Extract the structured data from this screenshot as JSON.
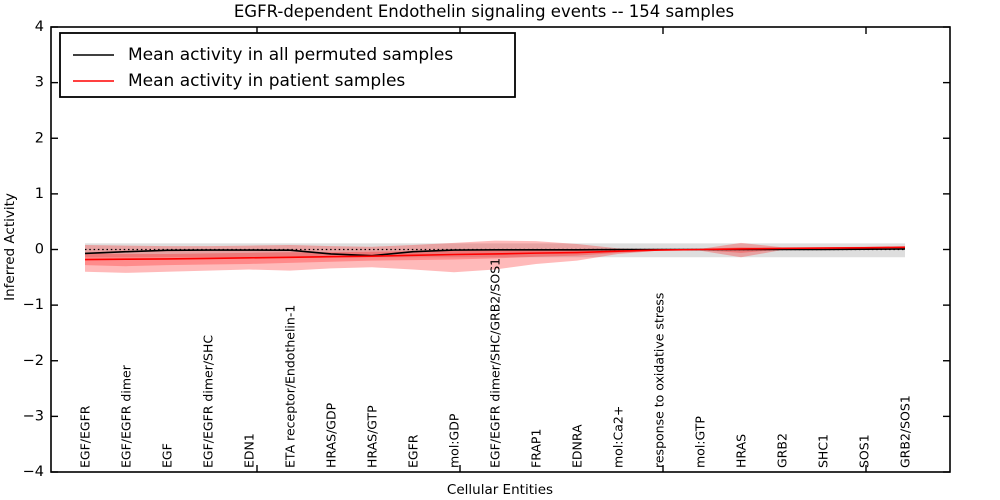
{
  "chart_data": {
    "type": "line",
    "title": "EGFR-dependent Endothelin signaling events -- 154 samples",
    "xlabel": "Cellular Entities",
    "ylabel": "Inferred Activity",
    "ylim": [
      -4,
      4
    ],
    "ytick_labels": [
      "4",
      "3",
      "2",
      "1",
      "0",
      "−1",
      "−2",
      "−3",
      "−4"
    ],
    "grid": false,
    "legend_position": "upper left",
    "categories": [
      "EGF/EGFR",
      "EGF/EGFR dimer",
      "EGF",
      "EGF/EGFR dimer/SHC",
      "EDN1",
      "ETA receptor/Endothelin-1",
      "HRAS/GDP",
      "HRAS/GTP",
      "EGFR",
      "mol:GDP",
      "EGF/EGFR dimer/SHC/GRB2/SOS1",
      "FRAP1",
      "EDNRA",
      "mol:Ca2+",
      "response to oxidative stress",
      "mol:GTP",
      "HRAS",
      "GRB2",
      "SHC1",
      "SOS1",
      "GRB2/SOS1"
    ],
    "series": [
      {
        "name": "Mean activity in all permuted samples",
        "color": "#000000",
        "style": "solid",
        "values": [
          -0.07,
          -0.04,
          -0.015,
          -0.01,
          -0.01,
          -0.012,
          -0.08,
          -0.11,
          -0.04,
          -0.01,
          -0.005,
          -0.005,
          -0.005,
          0,
          0,
          0,
          0,
          0,
          0,
          0.005,
          0.01
        ]
      },
      {
        "name": "Mean activity in patient samples",
        "color": "#ff0000",
        "style": "solid",
        "values": [
          -0.18,
          -0.175,
          -0.17,
          -0.16,
          -0.15,
          -0.14,
          -0.13,
          -0.12,
          -0.105,
          -0.09,
          -0.08,
          -0.065,
          -0.055,
          -0.03,
          -0.01,
          0,
          0.01,
          0.02,
          0.025,
          0.03,
          0.04
        ]
      }
    ],
    "bands": [
      {
        "name": "permuted-range",
        "fill": "rgba(0,0,0,0.13)",
        "top": [
          0.11,
          0.11,
          0.11,
          0.11,
          0.11,
          0.11,
          0.11,
          0.11,
          0.11,
          0.11,
          0.11,
          0.11,
          0.11,
          0.11,
          0.11,
          0.11,
          0.11,
          0.11,
          0.11,
          0.11,
          0.11
        ],
        "bottom": [
          -0.14,
          -0.14,
          -0.14,
          -0.14,
          -0.14,
          -0.14,
          -0.14,
          -0.14,
          -0.14,
          -0.14,
          -0.14,
          -0.14,
          -0.14,
          -0.14,
          -0.14,
          -0.14,
          -0.14,
          -0.14,
          -0.14,
          -0.14,
          -0.14
        ]
      },
      {
        "name": "patient-outer",
        "fill": "rgba(255,0,0,0.27)",
        "top": [
          0.08,
          0.07,
          0.06,
          0.06,
          0.07,
          0.08,
          0.06,
          0.05,
          0.08,
          0.12,
          0.16,
          0.15,
          0.1,
          0.02,
          0.0,
          0.01,
          0.12,
          0.04,
          0.04,
          0.05,
          0.06
        ],
        "bottom": [
          -0.4,
          -0.42,
          -0.4,
          -0.38,
          -0.36,
          -0.38,
          -0.34,
          -0.32,
          -0.36,
          -0.41,
          -0.36,
          -0.26,
          -0.2,
          -0.08,
          -0.02,
          -0.02,
          -0.14,
          -0.01,
          0,
          0,
          0.01
        ]
      },
      {
        "name": "patient-inner",
        "fill": "rgba(255,0,0,0.25)",
        "top": [
          -0.07,
          -0.08,
          -0.08,
          -0.07,
          -0.06,
          -0.05,
          -0.05,
          -0.04,
          -0.03,
          -0.02,
          -0.01,
          -0.01,
          -0.01,
          0,
          0,
          0.01,
          0.04,
          0.03,
          0.035,
          0.04,
          0.05
        ],
        "bottom": [
          -0.28,
          -0.3,
          -0.28,
          -0.27,
          -0.26,
          -0.24,
          -0.22,
          -0.2,
          -0.19,
          -0.18,
          -0.16,
          -0.13,
          -0.11,
          -0.06,
          -0.02,
          -0.01,
          -0.06,
          0,
          0.01,
          0.02,
          0.03
        ]
      }
    ],
    "zero_line": {
      "value": 0,
      "style": "dotted",
      "color": "#000000"
    }
  }
}
